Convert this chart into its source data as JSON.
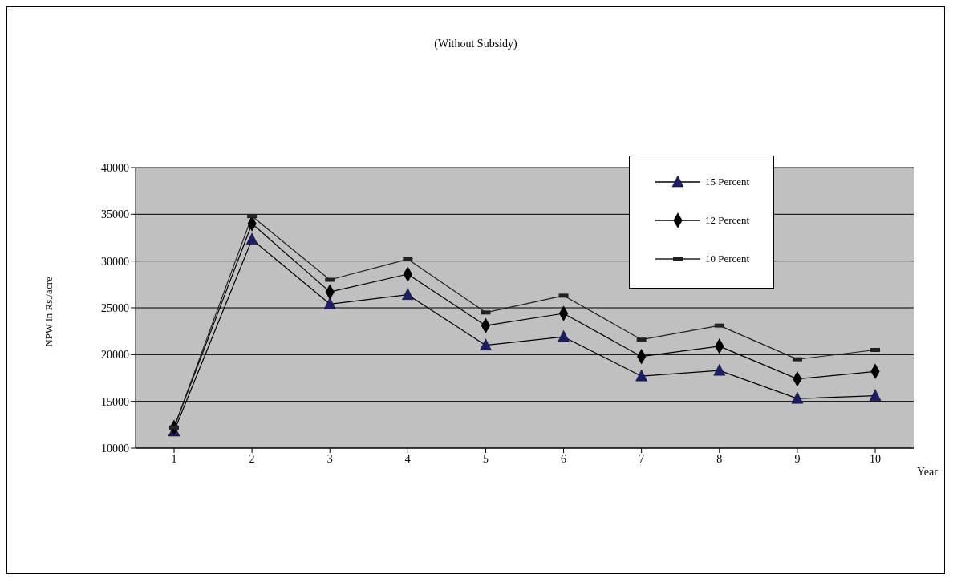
{
  "chart_data": {
    "type": "line",
    "title": "(Without Subsidy)",
    "xlabel": "Year",
    "ylabel": "NPW in Rs./acre",
    "categories": [
      "1",
      "2",
      "3",
      "4",
      "5",
      "6",
      "7",
      "8",
      "9",
      "10"
    ],
    "series": [
      {
        "name": "15 Percent",
        "color": "#000000",
        "marker": "triangle",
        "values": [
          11800,
          32300,
          25400,
          26400,
          21000,
          21900,
          17700,
          18300,
          15300,
          15600
        ]
      },
      {
        "name": "12 Percent",
        "color": "#000000",
        "marker": "diamond",
        "values": [
          12200,
          34000,
          26700,
          28600,
          23100,
          24400,
          19800,
          20900,
          17400,
          18200
        ]
      },
      {
        "name": "10 Percent",
        "color": "#202020",
        "marker": "square",
        "values": [
          12200,
          34800,
          28000,
          30200,
          24500,
          26300,
          21600,
          23100,
          19500,
          20500
        ]
      }
    ],
    "ylim": [
      10000,
      40000
    ],
    "yticks": [
      10000,
      15000,
      20000,
      25000,
      30000,
      35000,
      40000
    ],
    "grid": "y",
    "legend": "top right"
  }
}
